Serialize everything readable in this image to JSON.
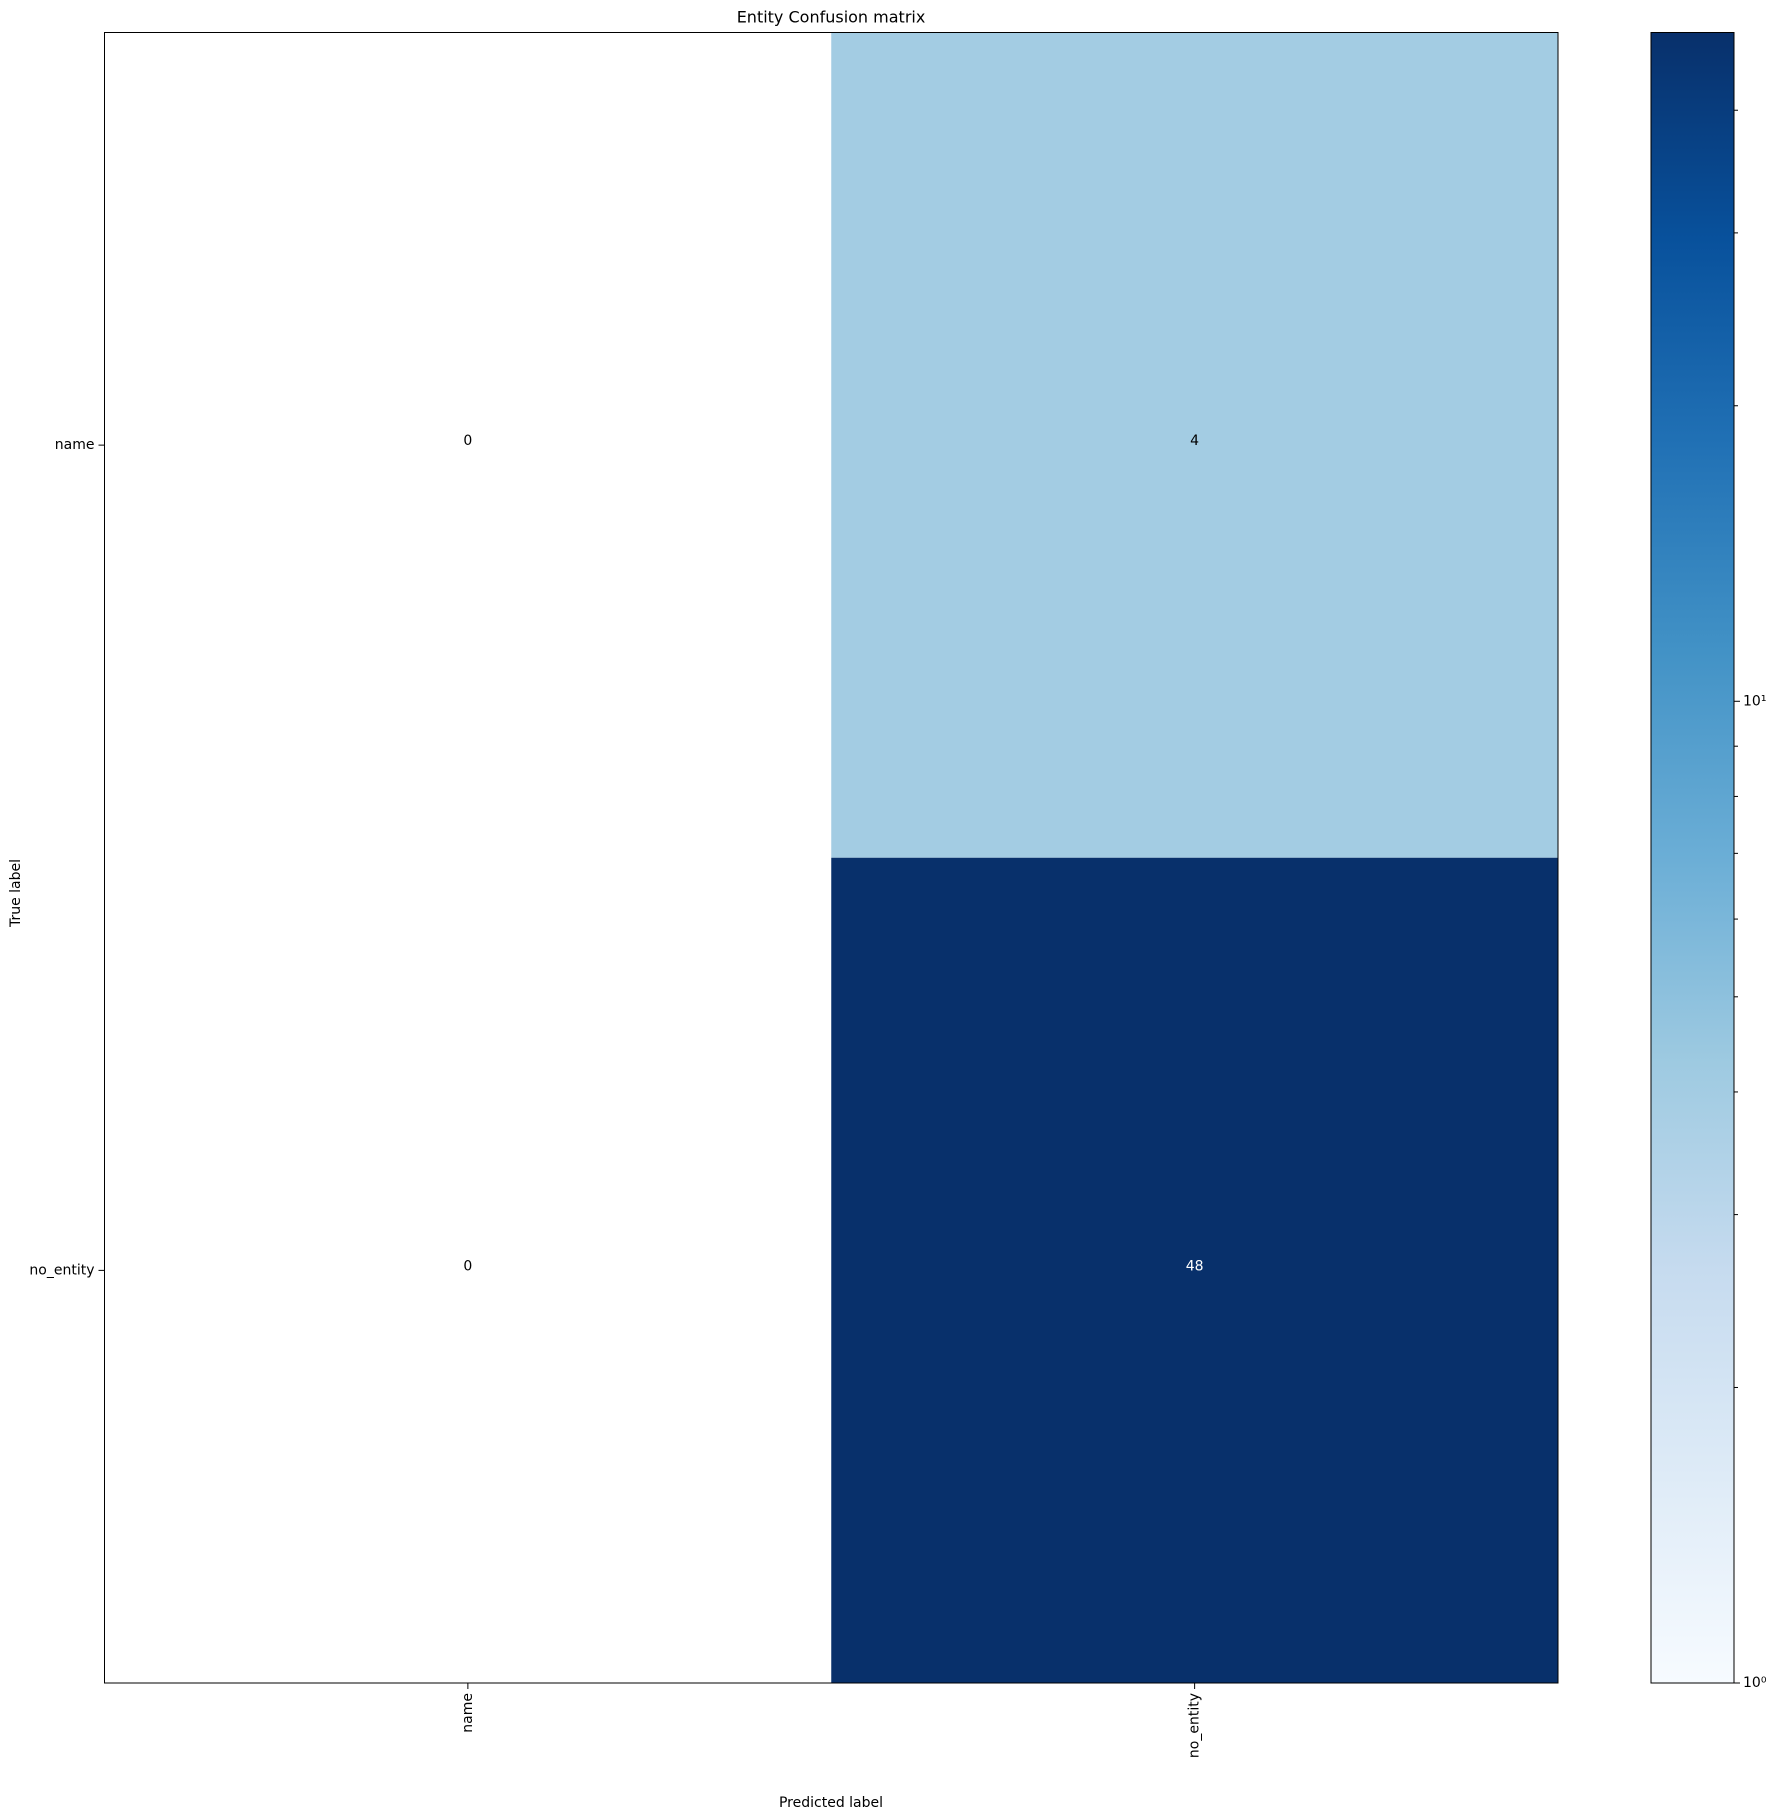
{
  "chart_data": {
    "type": "heatmap",
    "title": "Entity Confusion matrix",
    "x_label": "Predicted label",
    "y_label": "True label",
    "x_categories": [
      "name",
      "no_entity"
    ],
    "y_categories": [
      "name",
      "no_entity"
    ],
    "values": [
      [
        0,
        4
      ],
      [
        0,
        48
      ]
    ],
    "colormap": [
      "#f7fbff",
      "#deebf7",
      "#c6dbef",
      "#9ecae1",
      "#6baed6",
      "#4292c6",
      "#2171b5",
      "#08519c",
      "#08306b"
    ],
    "colorbar_scale": "log",
    "zlim": [
      1,
      48
    ],
    "zticks": [
      {
        "value": 1,
        "label": "10⁰"
      },
      {
        "value": 10,
        "label": "10¹"
      }
    ],
    "zminor_ticks": [
      2,
      3,
      4,
      5,
      6,
      7,
      8,
      9,
      20,
      30,
      40
    ]
  }
}
